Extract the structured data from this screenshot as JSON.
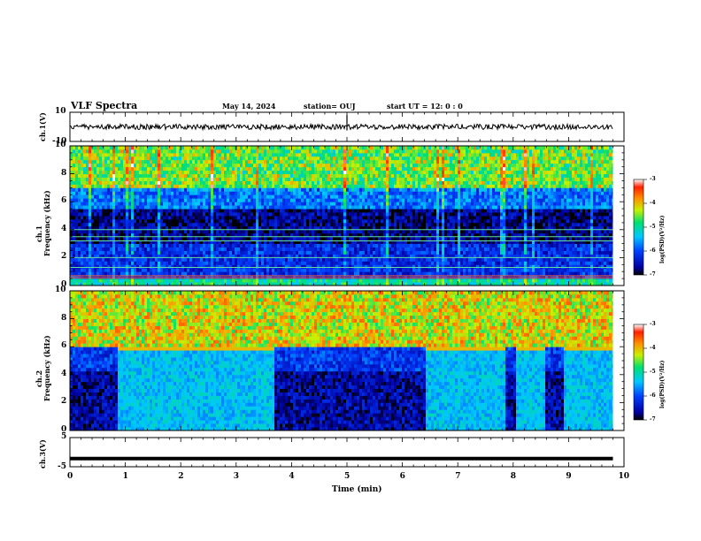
{
  "header": {
    "title": "VLF Spectra",
    "date": "May 14, 2024",
    "station": "station= OUJ",
    "start_ut": "start  UT =  12: 0  : 0"
  },
  "x_axis": {
    "label": "Time  (min)",
    "ticks": [
      "0",
      "1",
      "2",
      "3",
      "4",
      "5",
      "6",
      "7",
      "8",
      "9",
      "10"
    ]
  },
  "panels": {
    "ch1_voltage": {
      "ylabel": "ch.1(V)",
      "ticks": [
        "10",
        "-10"
      ],
      "ylim": [
        -10,
        10
      ]
    },
    "ch1_spectrogram": {
      "ylabel_line1": "ch.1",
      "ylabel_line2": "Frequency (kHz)",
      "ticks": [
        "0",
        "2",
        "4",
        "6",
        "8",
        "10"
      ]
    },
    "ch2_spectrogram": {
      "ylabel_line1": "ch.2",
      "ylabel_line2": "Frequency (kHz)",
      "ticks": [
        "0",
        "2",
        "4",
        "6",
        "8",
        "10"
      ]
    },
    "ch3_voltage": {
      "ylabel": "ch.3(V)",
      "ticks": [
        "5",
        "-5"
      ],
      "ylim": [
        -5,
        5
      ]
    }
  },
  "colorbar": {
    "label": "log(PSD)(V²/Hz)",
    "ticks": [
      "-3",
      "-4",
      "-5",
      "-6",
      "-7"
    ]
  },
  "chart_data": [
    {
      "type": "line",
      "title": "",
      "xlabel": "Time  (min)",
      "ylabel": "ch.1(V)",
      "xlim": [
        0,
        10
      ],
      "ylim": [
        -10,
        10
      ],
      "x": [
        0,
        1,
        2,
        3,
        4,
        5,
        6,
        7,
        8,
        9,
        9.8
      ],
      "series": [
        {
          "values": [
            0,
            0,
            0,
            0,
            0,
            0,
            0,
            0,
            0,
            0,
            0
          ]
        }
      ],
      "spike_at_min": 5.0
    },
    {
      "type": "heatmap",
      "title": "",
      "ylabel": "ch.1 Frequency (kHz)",
      "xlim": [
        0,
        10
      ],
      "ylim": [
        0,
        10
      ],
      "data_extent_min": [
        0,
        9.8
      ],
      "colorscale_log_psd": [
        -7,
        -3
      ],
      "description_rows_khz": [
        {
          "fmin": 0,
          "fmax": 0.5,
          "level": -5.0
        },
        {
          "fmin": 0.5,
          "fmax": 3.0,
          "level": -6.2
        },
        {
          "fmin": 3.0,
          "fmax": 5.5,
          "level": -6.7
        },
        {
          "fmin": 5.5,
          "fmax": 7.0,
          "level": -5.8
        },
        {
          "fmin": 7.0,
          "fmax": 10,
          "level": -4.7
        }
      ],
      "lines_khz": [
        0.55,
        0.7,
        1.3,
        2.0,
        3.2,
        3.5,
        4.0
      ]
    },
    {
      "type": "heatmap",
      "title": "",
      "ylabel": "ch.2 Frequency (kHz)",
      "xlim": [
        0,
        10
      ],
      "ylim": [
        0,
        10
      ],
      "data_extent_min": [
        0,
        9.8
      ],
      "colorscale_log_psd": [
        -7,
        -3
      ],
      "active_intervals_min": [
        [
          0.85,
          3.65
        ],
        [
          6.4,
          7.85
        ],
        [
          8.05,
          8.55
        ],
        [
          8.9,
          9.8
        ]
      ],
      "active_band_khz": {
        "low": [
          0,
          5.8
        ],
        "line": 5.9,
        "level_low": -5.4,
        "level_high": -4.0
      },
      "quiet_level_low": -6.6
    },
    {
      "type": "line",
      "title": "",
      "ylabel": "ch.3(V)",
      "xlim": [
        0,
        10
      ],
      "ylim": [
        -5,
        5
      ],
      "x": [
        0,
        9.8
      ],
      "series": [
        {
          "values": [
            -2.2,
            -2.2
          ]
        }
      ]
    }
  ]
}
